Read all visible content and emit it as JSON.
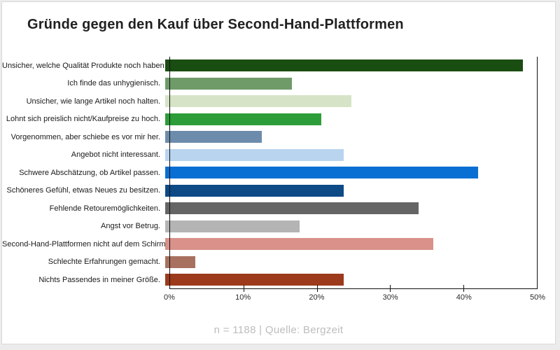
{
  "card": {
    "title": "Gründe gegen den Kauf über Second-Hand-Plattformen",
    "footer": "n = 1188 | Quelle: Bergzeit"
  },
  "chart_data": {
    "type": "bar",
    "orientation": "horizontal",
    "title": "Gründe gegen den Kauf über Second-Hand-Plattformen",
    "categories": [
      "Unsicher, welche Qualität Produkte noch haben.",
      "Ich finde das unhygienisch.",
      "Unsicher, wie lange Artikel noch halten.",
      "Lohnt sich preislich nicht/Kaufpreise zu hoch.",
      "Vorgenommen, aber schiebe es vor mir her.",
      "Angebot nicht interessant.",
      "Schwere Abschätzung, ob Artikel passen.",
      "Schöneres Gefühl, etwas Neues zu besitzen.",
      "Fehlende Retouremöglichkeiten.",
      "Angst vor Betrug.",
      "Second-Hand-Plattformen nicht auf dem Schirm.",
      "Schlechte Erfahrungen gemacht.",
      "Nichts Passendes in meiner Größe."
    ],
    "values": [
      48,
      17,
      25,
      21,
      13,
      24,
      42,
      24,
      34,
      18,
      36,
      4,
      24
    ],
    "unit": "%",
    "bar_colors": [
      "#1a4d11",
      "#6f9b69",
      "#d7e3c7",
      "#2d9d3a",
      "#6d8cab",
      "#b9d4ef",
      "#0a6fd2",
      "#0d4a86",
      "#656565",
      "#b4b4b4",
      "#d9918a",
      "#a8715f",
      "#9c3a1b"
    ],
    "xlabel": "",
    "ylabel": "",
    "xlim": [
      0,
      50
    ],
    "x_ticks": [
      "0%",
      "10%",
      "20%",
      "30%",
      "40%",
      "50%"
    ],
    "grid": false,
    "legend": "none",
    "footer": "n = 1188 | Quelle: Bergzeit"
  }
}
